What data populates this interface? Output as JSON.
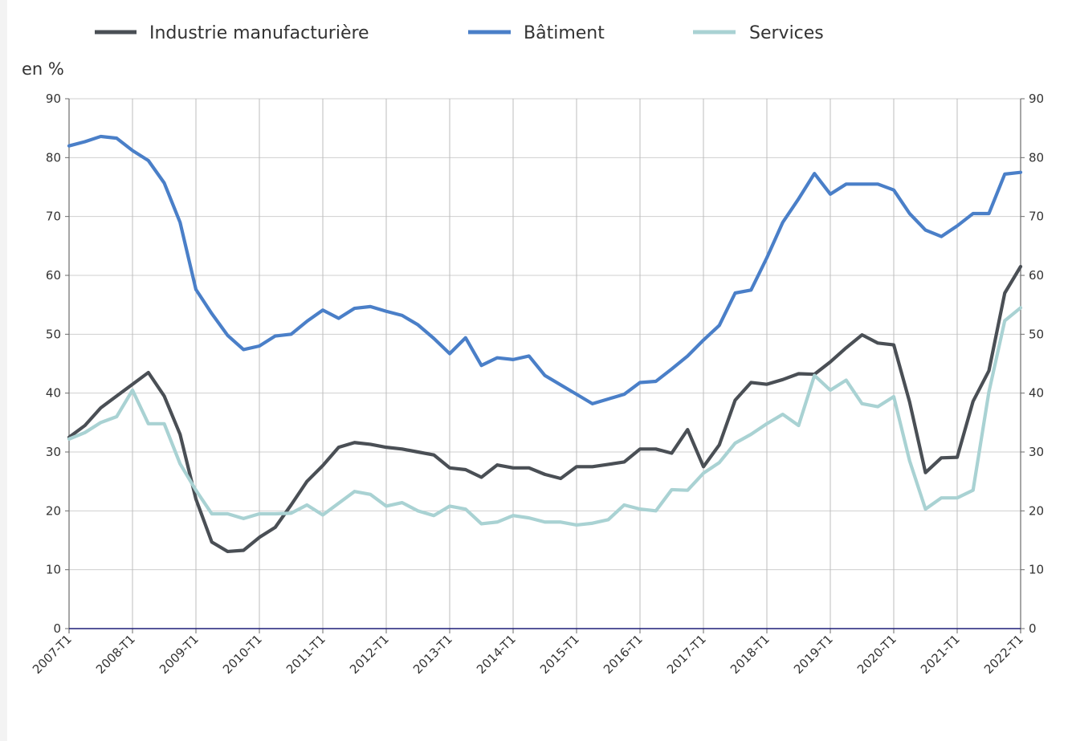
{
  "chart_data": {
    "type": "line",
    "unit_label": "en %",
    "ylim": [
      0,
      90
    ],
    "y_ticks": [
      0,
      10,
      20,
      30,
      40,
      50,
      60,
      70,
      80,
      90
    ],
    "x_tick_labels": [
      "2007-T1",
      "2008-T1",
      "2009-T1",
      "2010-T1",
      "2011-T1",
      "2012-T1",
      "2013-T1",
      "2014-T1",
      "2015-T1",
      "2016-T1",
      "2017-T1",
      "2018-T1",
      "2019-T1",
      "2020-T1",
      "2021-T1",
      "2022-T1"
    ],
    "grid": true,
    "legend_position": "top",
    "series": [
      {
        "name": "Industrie manufacturière",
        "color": "#4a4f55",
        "values": [
          32.5,
          34.5,
          37.5,
          39.5,
          41.5,
          43.5,
          39.5,
          33,
          22,
          14.7,
          13.1,
          13.3,
          15.5,
          17.2,
          21,
          25,
          27.7,
          30.8,
          31.6,
          31.3,
          30.8,
          30.5,
          30,
          29.5,
          27.3,
          27,
          25.7,
          27.8,
          27.3,
          27.3,
          26.2,
          25.5,
          27.5,
          27.5,
          27.9,
          28.3,
          30.5,
          30.5,
          29.8,
          33.8,
          27.5,
          31.2,
          38.8,
          41.8,
          41.5,
          42.3,
          43.3,
          43.2,
          45.3,
          47.7,
          49.9,
          48.5,
          48.2,
          38.5,
          26.5,
          29,
          29.1,
          38.6,
          43.8,
          57,
          61.5
        ]
      },
      {
        "name": "Bâtiment",
        "color": "#4a7fc8",
        "values": [
          82,
          82.7,
          83.6,
          83.3,
          81.2,
          79.5,
          75.7,
          69,
          57.6,
          53.5,
          49.8,
          47.4,
          48,
          49.7,
          50,
          52.2,
          54.1,
          52.7,
          54.4,
          54.7,
          53.9,
          53.2,
          51.6,
          49.3,
          46.7,
          49.4,
          44.7,
          46,
          45.7,
          46.3,
          43,
          41.4,
          39.8,
          38.2,
          39,
          39.8,
          41.8,
          42,
          44.1,
          46.3,
          49,
          51.5,
          57,
          57.5,
          63,
          69,
          73,
          77.3,
          73.8,
          75.5,
          75.5,
          75.5,
          74.5,
          70.5,
          67.7,
          66.6,
          68.4,
          70.5,
          70.5,
          77.2,
          77.5
        ]
      },
      {
        "name": "Services",
        "color": "#a9d2d3",
        "values": [
          32.2,
          33.3,
          35,
          36,
          40.5,
          34.8,
          34.8,
          28,
          23.5,
          19.5,
          19.5,
          18.7,
          19.5,
          19.5,
          19.6,
          21,
          19.3,
          21.3,
          23.3,
          22.8,
          20.8,
          21.4,
          20,
          19.2,
          20.8,
          20.3,
          17.8,
          18.1,
          19.2,
          18.8,
          18.1,
          18.1,
          17.6,
          17.9,
          18.5,
          21,
          20.3,
          20,
          23.6,
          23.5,
          26.4,
          28.2,
          31.5,
          33,
          34.8,
          36.4,
          34.5,
          43,
          40.5,
          42.2,
          38.2,
          37.7,
          39.4,
          28.5,
          20.3,
          22.2,
          22.2,
          23.5,
          40.2,
          52.3,
          54.5
        ]
      }
    ]
  }
}
